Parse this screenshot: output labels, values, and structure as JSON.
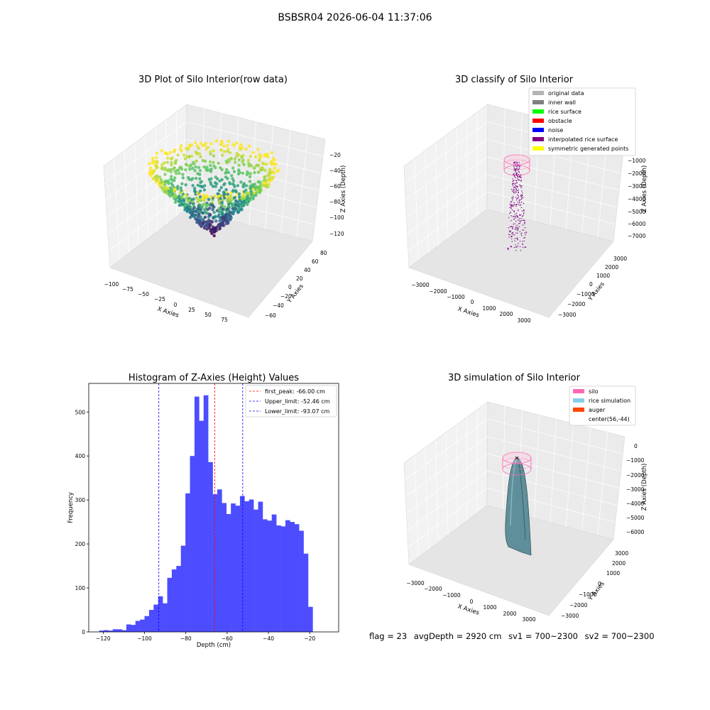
{
  "suptitle": "BSBSR04 2026-06-04 11:37:06",
  "footer": {
    "flag": "flag = 23",
    "avg": "avgDepth = 2920 cm",
    "sv1": "sv1 = 700~2300",
    "sv2": "sv2 = 700~2300"
  },
  "colors": {
    "hist_bar": "#4d4dff",
    "peak_line": "#ff0000",
    "limit_line": "#0000ff",
    "silo": "#ff69b4",
    "rice": "#87ceeb",
    "auger": "#ff4500",
    "pane": "#f2f2f2"
  },
  "chart_data": [
    {
      "type": "scatter",
      "title": "3D Plot of Silo Interior(row data)",
      "xlabel": "X Axies",
      "ylabel": "Y Axies",
      "zlabel": "Z Axies (Depth)",
      "x_ticks": [
        "−100",
        "−75",
        "−50",
        "−25",
        "0",
        "25",
        "50",
        "75"
      ],
      "y_ticks": [
        "−60",
        "−40",
        "−20",
        "0",
        "20",
        "40",
        "60",
        "80"
      ],
      "z_ticks": [
        "−20",
        "−40",
        "−60",
        "−80",
        "−100",
        "−120"
      ],
      "colormap": "viridis"
    },
    {
      "type": "scatter",
      "title": "3D classify of Silo Interior",
      "xlabel": "X Axies",
      "ylabel": "Y Axies",
      "zlabel": "Z Axies (Depth)",
      "x_ticks": [
        "−3000",
        "−2000",
        "−1000",
        "0",
        "1000",
        "2000",
        "3000"
      ],
      "y_ticks": [
        "−3000",
        "−2000",
        "−1000",
        "0",
        "1000",
        "2000",
        "3000"
      ],
      "z_ticks": [
        "−1000",
        "−2000",
        "−3000",
        "−4000",
        "−5000",
        "−6000",
        "−7000"
      ],
      "legend_position": "top-right",
      "legend": [
        {
          "label": "original data",
          "color": "#b3b3b3"
        },
        {
          "label": "inner wall",
          "color": "#808080"
        },
        {
          "label": "rice surface",
          "color": "#00ff00"
        },
        {
          "label": "obstacle",
          "color": "#ff0000"
        },
        {
          "label": "noise",
          "color": "#0000ff"
        },
        {
          "label": "interpolated rice surface",
          "color": "#800080"
        },
        {
          "label": "symmetric generated points",
          "color": "#ffff00"
        }
      ]
    },
    {
      "type": "bar",
      "title": "Histogram of Z-Axies (Height) Values",
      "xlabel": "Depth (cm)",
      "ylabel": "Frequency",
      "xlim": [
        -127,
        -6
      ],
      "ylim": [
        0,
        565
      ],
      "x_ticks": [
        -120,
        -100,
        -80,
        -60,
        -40,
        -20
      ],
      "y_ticks": [
        0,
        100,
        200,
        300,
        400,
        500
      ],
      "bin_start": -122,
      "bin_width": 2.2,
      "values": [
        3,
        4,
        3,
        6,
        6,
        4,
        17,
        16,
        25,
        28,
        36,
        50,
        62,
        81,
        65,
        123,
        142,
        150,
        196,
        315,
        400,
        535,
        480,
        538,
        386,
        313,
        324,
        293,
        268,
        292,
        287,
        309,
        297,
        301,
        278,
        296,
        256,
        253,
        267,
        242,
        240,
        254,
        250,
        245,
        230,
        178,
        57
      ],
      "vlines": [
        {
          "label": "first_peak: -66.00 cm",
          "value": -66.0,
          "color": "#ff0000"
        },
        {
          "label": "Upper_limit: -52.46 cm",
          "value": -52.46,
          "color": "#0000ff"
        },
        {
          "label": "Lower_limit: -93.07 cm",
          "value": -93.07,
          "color": "#0000ff"
        }
      ],
      "legend_position": "top-right"
    },
    {
      "type": "scatter",
      "title": "3D simulation of Silo Interior",
      "xlabel": "X Axies",
      "ylabel": "Y Axies",
      "zlabel": "Z Axies (Depth)",
      "x_ticks": [
        "−3000",
        "−2000",
        "−1000",
        "0",
        "1000",
        "2000",
        "3000"
      ],
      "y_ticks": [
        "−3000",
        "−2000",
        "−1000",
        "0",
        "1000",
        "2000",
        "3000"
      ],
      "z_ticks": [
        "0",
        "−1000",
        "−2000",
        "−3000",
        "−4000",
        "−5000",
        "−6000"
      ],
      "legend_position": "top-right",
      "legend": [
        {
          "label": "silo",
          "color": "#ff69b4"
        },
        {
          "label": "rice simulation",
          "color": "#87ceeb"
        },
        {
          "label": "auger",
          "color": "#ff4500"
        },
        {
          "label": "center(56,-44)",
          "color": ""
        }
      ]
    }
  ]
}
